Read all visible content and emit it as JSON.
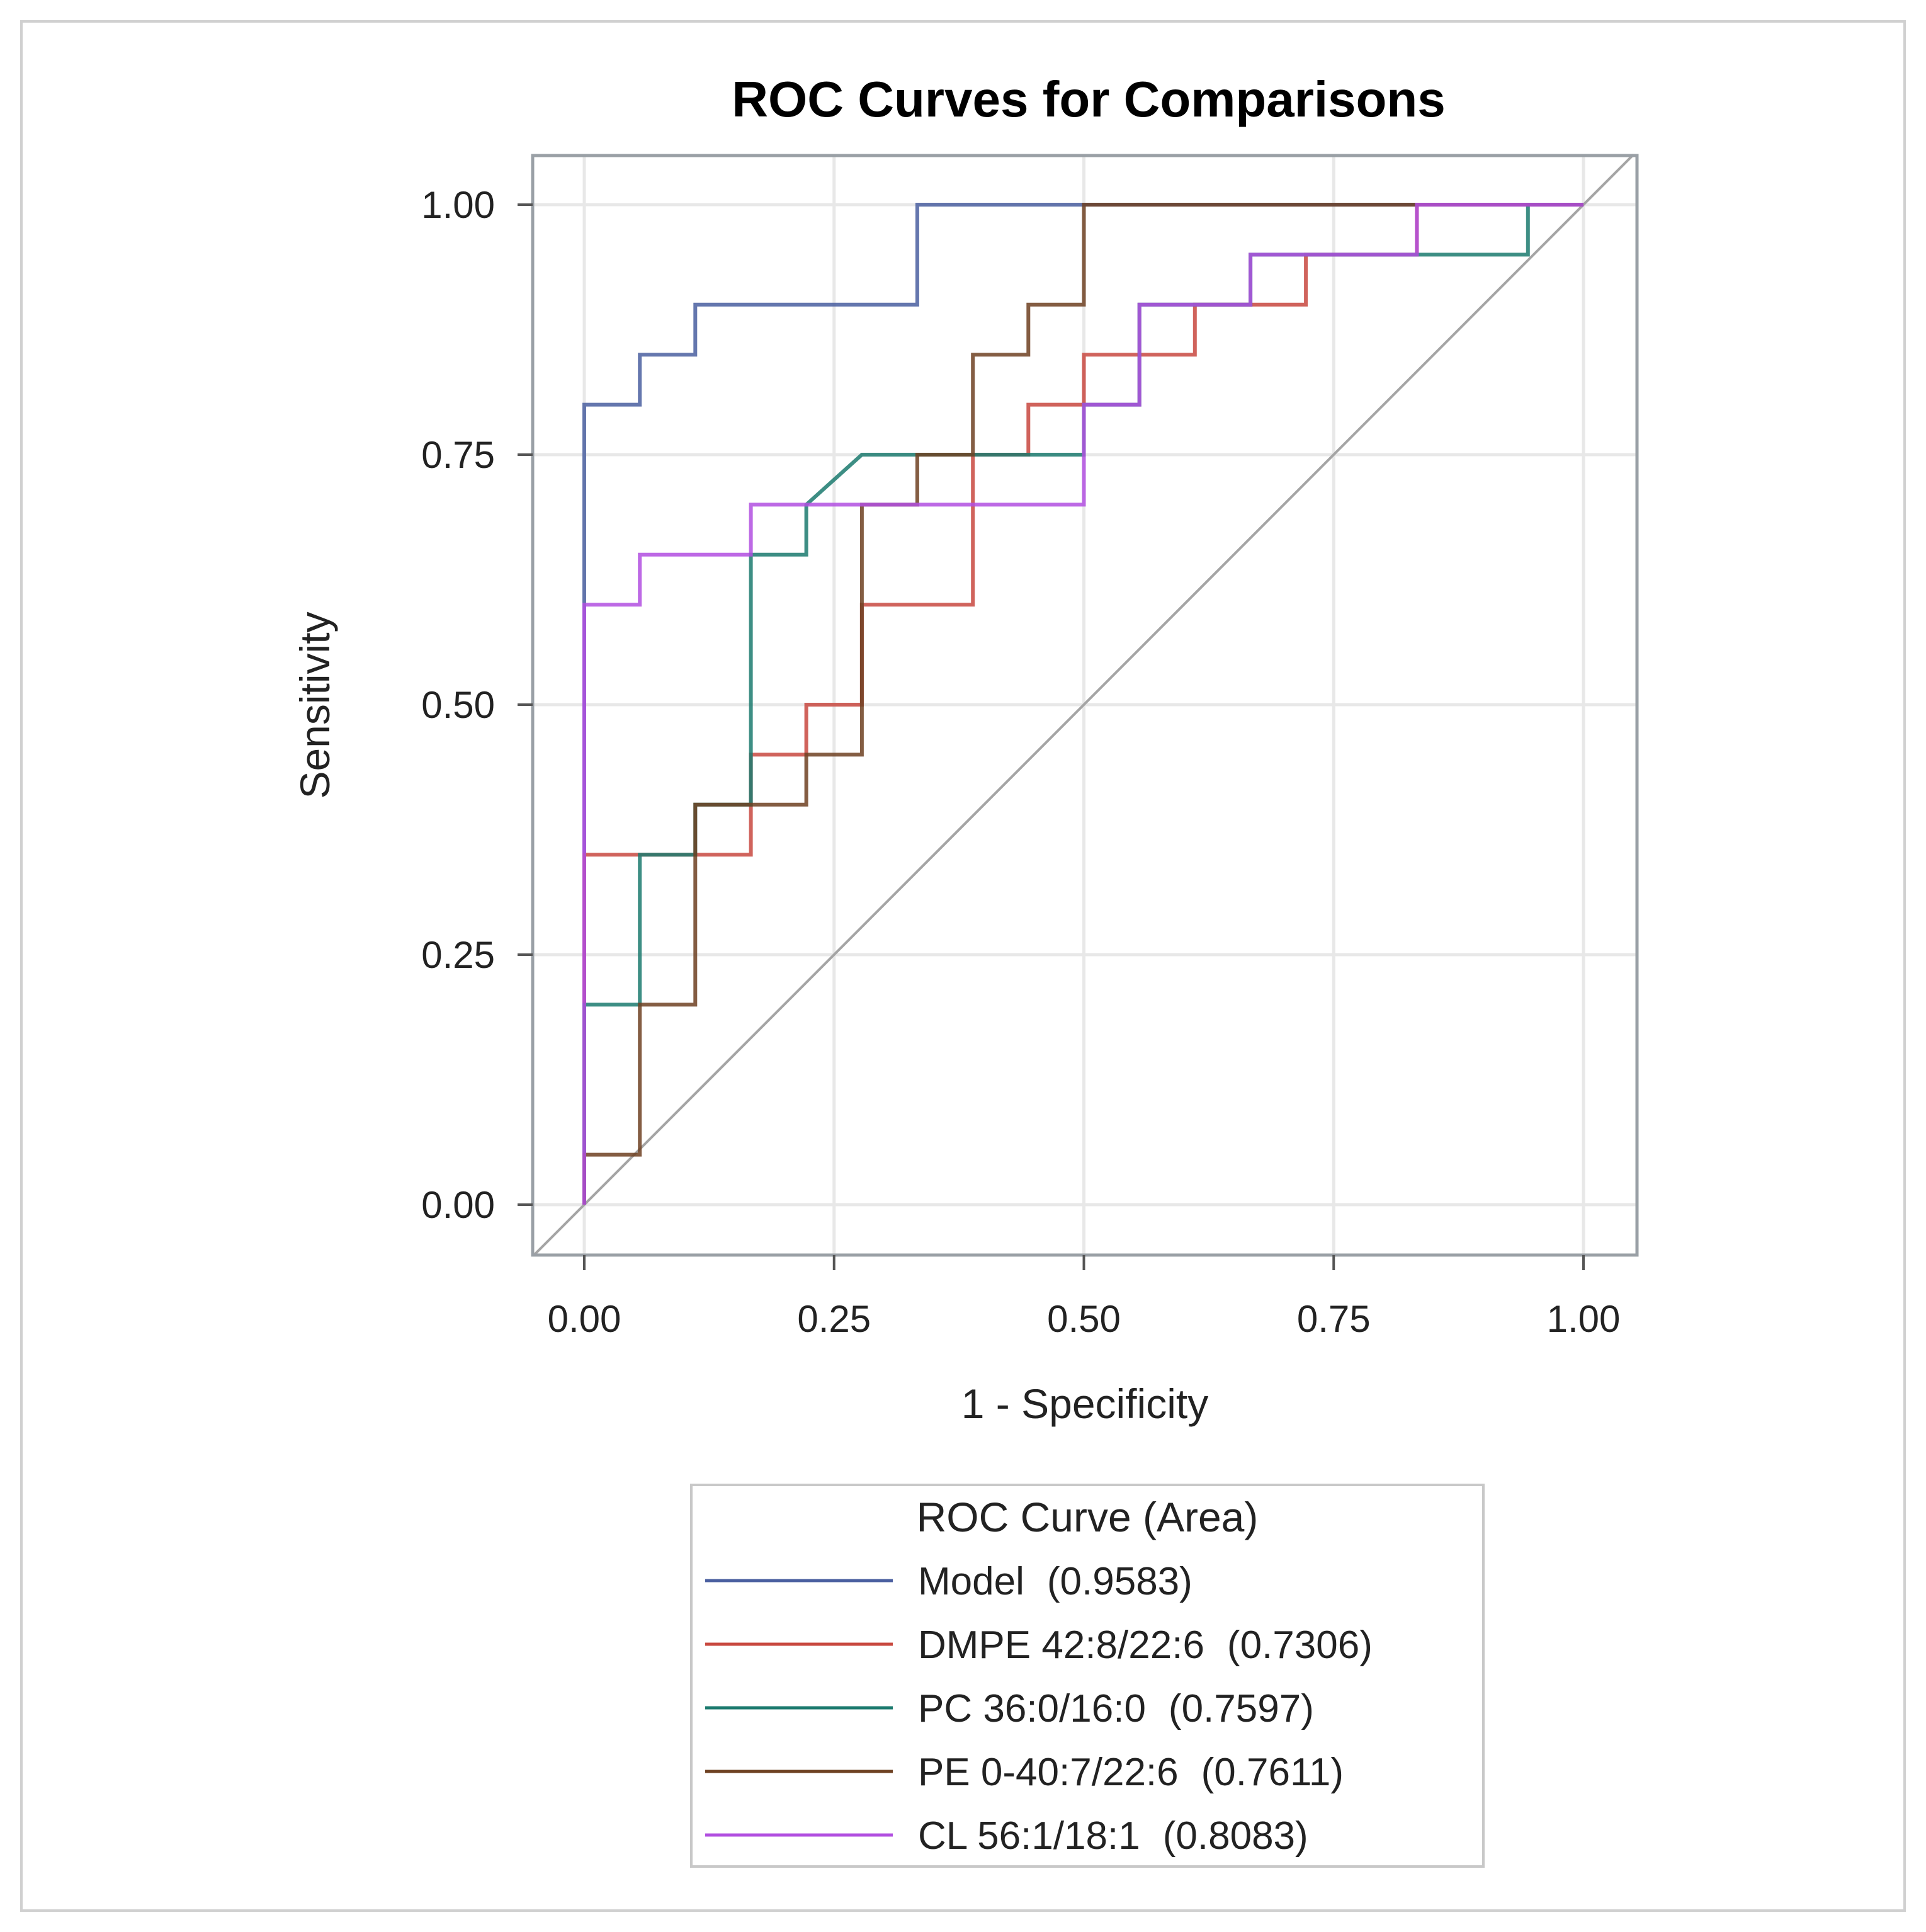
{
  "chart_data": {
    "type": "line",
    "title": "ROC Curves for Comparisons",
    "xlabel": "1 - Specificity",
    "ylabel": "Sensitivity",
    "xlim": [
      0,
      1
    ],
    "ylim": [
      0,
      1
    ],
    "xticks": [
      "0.00",
      "0.25",
      "0.50",
      "0.75",
      "1.00"
    ],
    "yticks": [
      "0.00",
      "0.25",
      "0.50",
      "0.75",
      "1.00"
    ],
    "grid": true,
    "reference_line": "diagonal",
    "legend": {
      "title": "ROC Curve (Area)",
      "placement": "bottom"
    },
    "series": [
      {
        "name": "Model",
        "area": "(0.9583)",
        "color": "#4a5fa0",
        "points": [
          [
            0,
            0
          ],
          [
            0,
            0.8
          ],
          [
            0.0556,
            0.8
          ],
          [
            0.0556,
            0.85
          ],
          [
            0.1111,
            0.85
          ],
          [
            0.1111,
            0.9
          ],
          [
            0.3333,
            0.9
          ],
          [
            0.3333,
            1.0
          ],
          [
            1.0,
            1.0
          ]
        ]
      },
      {
        "name": "DMPE 42:8/22:6",
        "area": "(0.7306)",
        "color": "#c8483f",
        "points": [
          [
            0,
            0
          ],
          [
            0,
            0.35
          ],
          [
            0.1667,
            0.35
          ],
          [
            0.1667,
            0.45
          ],
          [
            0.2222,
            0.45
          ],
          [
            0.2222,
            0.5
          ],
          [
            0.2778,
            0.5
          ],
          [
            0.2778,
            0.6
          ],
          [
            0.3889,
            0.6
          ],
          [
            0.3889,
            0.75
          ],
          [
            0.4444,
            0.75
          ],
          [
            0.4444,
            0.8
          ],
          [
            0.5,
            0.8
          ],
          [
            0.5,
            0.85
          ],
          [
            0.6111,
            0.85
          ],
          [
            0.6111,
            0.9
          ],
          [
            0.7222,
            0.9
          ],
          [
            0.7222,
            0.95
          ],
          [
            0.8333,
            0.95
          ],
          [
            0.8333,
            1.0
          ],
          [
            1.0,
            1.0
          ]
        ]
      },
      {
        "name": "PC 36:0/16:0",
        "area": "(0.7597)",
        "color": "#1b7a6e",
        "points": [
          [
            0,
            0
          ],
          [
            0,
            0.2
          ],
          [
            0.0556,
            0.2
          ],
          [
            0.0556,
            0.35
          ],
          [
            0.1111,
            0.35
          ],
          [
            0.1111,
            0.4
          ],
          [
            0.1667,
            0.4
          ],
          [
            0.1667,
            0.65
          ],
          [
            0.2222,
            0.65
          ],
          [
            0.2222,
            0.7
          ],
          [
            0.2778,
            0.75
          ],
          [
            0.5,
            0.75
          ],
          [
            0.5,
            0.8
          ],
          [
            0.5556,
            0.8
          ],
          [
            0.5556,
            0.9
          ],
          [
            0.6667,
            0.9
          ],
          [
            0.6667,
            0.95
          ],
          [
            0.9444,
            0.95
          ],
          [
            0.9444,
            1.0
          ],
          [
            1.0,
            1.0
          ]
        ]
      },
      {
        "name": "PE 0-40:7/22:6",
        "area": "(0.7611)",
        "color": "#6e4122",
        "points": [
          [
            0,
            0
          ],
          [
            0,
            0.05
          ],
          [
            0.0556,
            0.05
          ],
          [
            0.0556,
            0.2
          ],
          [
            0.1111,
            0.2
          ],
          [
            0.1111,
            0.4
          ],
          [
            0.2222,
            0.4
          ],
          [
            0.2222,
            0.45
          ],
          [
            0.2778,
            0.45
          ],
          [
            0.2778,
            0.7
          ],
          [
            0.3333,
            0.7
          ],
          [
            0.3333,
            0.75
          ],
          [
            0.3889,
            0.75
          ],
          [
            0.3889,
            0.85
          ],
          [
            0.4444,
            0.85
          ],
          [
            0.4444,
            0.9
          ],
          [
            0.5,
            0.9
          ],
          [
            0.5,
            1.0
          ],
          [
            1.0,
            1.0
          ]
        ]
      },
      {
        "name": "CL 56:1/18:1",
        "area": "(0.8083)",
        "color": "#b14fe0",
        "points": [
          [
            0,
            0
          ],
          [
            0,
            0.6
          ],
          [
            0.0556,
            0.6
          ],
          [
            0.0556,
            0.65
          ],
          [
            0.1667,
            0.65
          ],
          [
            0.1667,
            0.7
          ],
          [
            0.5,
            0.7
          ],
          [
            0.5,
            0.8
          ],
          [
            0.5556,
            0.8
          ],
          [
            0.5556,
            0.9
          ],
          [
            0.6667,
            0.9
          ],
          [
            0.6667,
            0.95
          ],
          [
            0.8333,
            0.95
          ],
          [
            0.8333,
            1.0
          ],
          [
            1.0,
            1.0
          ]
        ]
      }
    ]
  }
}
